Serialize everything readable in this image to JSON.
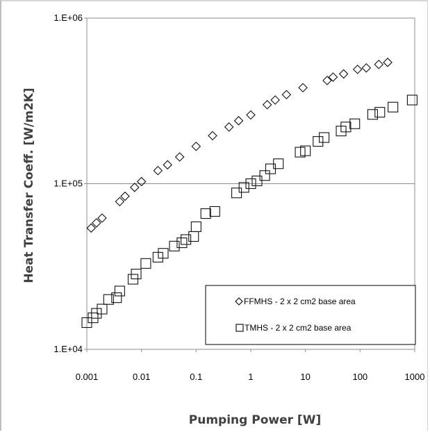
{
  "chart_data": {
    "type": "scatter",
    "xlabel": "Pumping Power [W]",
    "ylabel": "Heat Transfer Coeff. [W/m2K]",
    "x_scale": "log",
    "y_scale": "log",
    "xlim": [
      0.001,
      1000
    ],
    "ylim": [
      10000,
      1000000
    ],
    "x_ticks": [
      "0.001",
      "0.01",
      "0.1",
      "1",
      "10",
      "100",
      "1000"
    ],
    "y_ticks": [
      "1.E+04",
      "1.E+05",
      "1.E+06"
    ],
    "grid": "horizontal",
    "legend_position": "lower-right",
    "series": [
      {
        "name": "FFMHS - 2 x 2 cm2 base area",
        "marker": "diamond",
        "x": [
          0.0012,
          0.0015,
          0.0019,
          0.004,
          0.005,
          0.0075,
          0.01,
          0.02,
          0.03,
          0.05,
          0.1,
          0.2,
          0.4,
          0.6,
          1.0,
          2.0,
          2.8,
          4.5,
          9.0,
          25,
          32,
          50,
          90,
          130,
          220,
          320
        ],
        "y": [
          54000,
          58000,
          62000,
          78000,
          84000,
          95000,
          103000,
          120000,
          130000,
          145000,
          168000,
          195000,
          220000,
          240000,
          260000,
          300000,
          320000,
          345000,
          380000,
          420000,
          440000,
          460000,
          490000,
          500000,
          525000,
          540000
        ]
      },
      {
        "name": "TMHS - 2 x 2 cm2 base area",
        "marker": "square",
        "x": [
          0.001,
          0.0013,
          0.0015,
          0.0019,
          0.0025,
          0.0035,
          0.004,
          0.007,
          0.008,
          0.012,
          0.02,
          0.025,
          0.04,
          0.055,
          0.065,
          0.09,
          0.1,
          0.15,
          0.22,
          0.55,
          0.75,
          1.0,
          1.3,
          1.8,
          2.3,
          3.2,
          8.0,
          10,
          17,
          22,
          45,
          55,
          80,
          170,
          230,
          400,
          900
        ],
        "y": [
          14500,
          15500,
          16500,
          17500,
          20000,
          20500,
          22500,
          26500,
          28500,
          33000,
          36000,
          38000,
          42000,
          44000,
          46000,
          48000,
          55000,
          66000,
          68000,
          88000,
          95000,
          100000,
          104000,
          112000,
          123000,
          132000,
          155000,
          158000,
          180000,
          190000,
          208000,
          220000,
          230000,
          262000,
          270000,
          290000,
          320000
        ]
      }
    ]
  }
}
